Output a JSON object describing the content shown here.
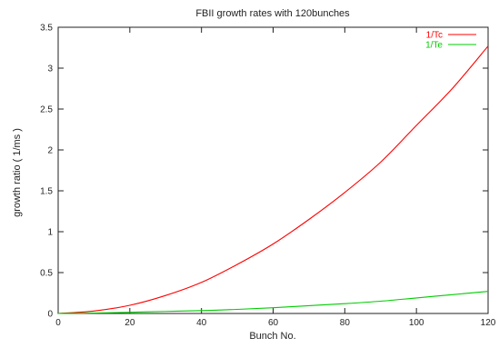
{
  "chart_data": {
    "type": "line",
    "title": "FBII growth rates with 120bunches",
    "xlabel": "Bunch No.",
    "ylabel": "growth ratio ( 1/ms )",
    "xlim": [
      0,
      120
    ],
    "ylim": [
      0,
      3.5
    ],
    "x_ticks": [
      0,
      20,
      40,
      60,
      80,
      100,
      120
    ],
    "y_ticks": [
      0,
      0.5,
      1,
      1.5,
      2,
      2.5,
      3,
      3.5
    ],
    "x_tick_labels": [
      "0",
      "20",
      "40",
      "60",
      "80",
      "100",
      "120"
    ],
    "y_tick_labels": [
      "0",
      "0.5",
      "1",
      "1.5",
      "2",
      "2.5",
      "3",
      "3.5"
    ],
    "grid": false,
    "legend_position": "top-right",
    "x": [
      0,
      10,
      20,
      30,
      40,
      50,
      60,
      70,
      80,
      90,
      100,
      110,
      120
    ],
    "series": [
      {
        "name": "1/Tc",
        "color": "#ff0000",
        "values": [
          0,
          0.03,
          0.1,
          0.22,
          0.38,
          0.6,
          0.85,
          1.15,
          1.48,
          1.85,
          2.3,
          2.75,
          3.27
        ]
      },
      {
        "name": "1/Te",
        "color": "#00cc00",
        "values": [
          0,
          0.005,
          0.015,
          0.025,
          0.035,
          0.05,
          0.07,
          0.095,
          0.12,
          0.15,
          0.19,
          0.23,
          0.27
        ]
      }
    ]
  }
}
